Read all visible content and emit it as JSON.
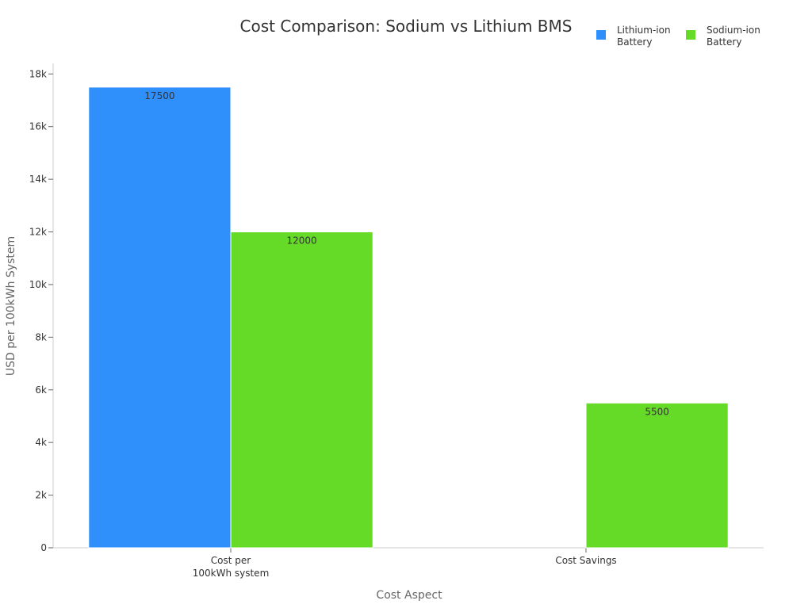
{
  "chart_data": {
    "type": "bar",
    "title": "Cost Comparison: Sodium vs Lithium BMS",
    "xlabel": "Cost Aspect",
    "ylabel": "USD per 100kWh System",
    "categories": [
      "Cost per\n100kWh system",
      "Cost Savings"
    ],
    "series": [
      {
        "name": "Lithium-ion\nBattery",
        "color": "#2f90fc",
        "values": [
          17500,
          null
        ],
        "labels": [
          "17500",
          ""
        ]
      },
      {
        "name": "Sodium-ion\nBattery",
        "color": "#66db27",
        "values": [
          12000,
          5500
        ],
        "labels": [
          "12000",
          "5500"
        ]
      }
    ],
    "ylim": [
      0,
      18400
    ],
    "yticks": [
      0,
      2000,
      4000,
      6000,
      8000,
      10000,
      12000,
      14000,
      16000,
      18000
    ],
    "ytick_labels": [
      "0",
      "2k",
      "4k",
      "6k",
      "8k",
      "10k",
      "12k",
      "14k",
      "16k",
      "18k"
    ],
    "grid": false,
    "legend_position": "top-right"
  }
}
